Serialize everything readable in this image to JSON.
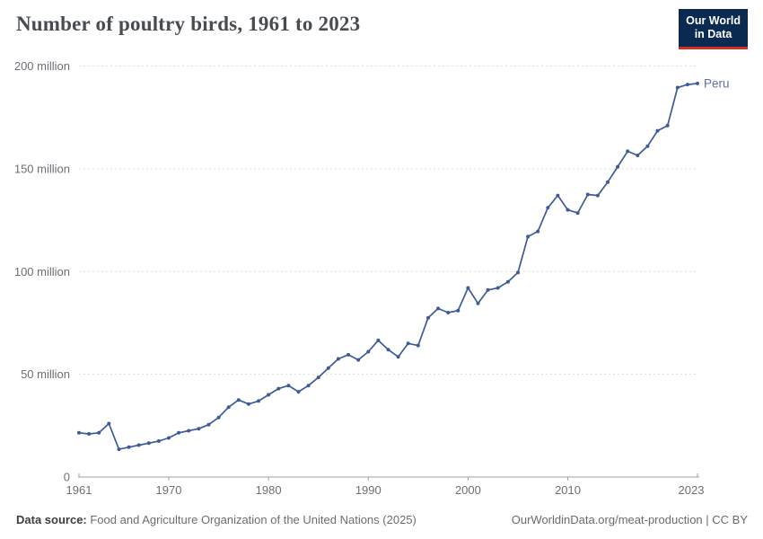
{
  "header": {
    "title": "Number of poultry birds, 1961 to 2023",
    "logo": {
      "line1": "Our World",
      "line2": "in Data"
    }
  },
  "footer": {
    "source_label": "Data source:",
    "source_text": " Food and Agriculture Organization of the United Nations (2025)",
    "link_text": "OurWorldinData.org/meat-production",
    "separator": " | ",
    "license": "CC BY"
  },
  "colors": {
    "line": "#3d5b99",
    "series_label": "#5d70a7",
    "grid": "#dcdcdc",
    "axis": "#a0a0a0",
    "tick_text": "#6d6f77",
    "logo_bg": "#0b2a51",
    "logo_red": "#d02e26"
  },
  "chart_data": {
    "type": "line",
    "title": "Number of poultry birds, 1961 to 2023",
    "unit": "million birds",
    "xlabel": "",
    "ylabel": "",
    "x_range": [
      1961,
      2023
    ],
    "ylim_millions": [
      0,
      200
    ],
    "grid": "dashed-horizontal",
    "legend_position": "end-of-line",
    "x_ticks": [
      1961,
      1970,
      1980,
      1990,
      2000,
      2010,
      2023
    ],
    "y_ticks": [
      {
        "value": 0,
        "label": "0"
      },
      {
        "value": 50,
        "label": "50 million"
      },
      {
        "value": 100,
        "label": "100 million"
      },
      {
        "value": 150,
        "label": "150 million"
      },
      {
        "value": 200,
        "label": "200 million"
      }
    ],
    "series": [
      {
        "name": "Peru",
        "x": [
          1961,
          1962,
          1963,
          1964,
          1965,
          1966,
          1967,
          1968,
          1969,
          1970,
          1971,
          1972,
          1973,
          1974,
          1975,
          1976,
          1977,
          1978,
          1979,
          1980,
          1981,
          1982,
          1983,
          1984,
          1985,
          1986,
          1987,
          1988,
          1989,
          1990,
          1991,
          1992,
          1993,
          1994,
          1995,
          1996,
          1997,
          1998,
          1999,
          2000,
          2001,
          2002,
          2003,
          2004,
          2005,
          2006,
          2007,
          2008,
          2009,
          2010,
          2011,
          2012,
          2013,
          2014,
          2015,
          2016,
          2017,
          2018,
          2019,
          2020,
          2021,
          2022,
          2023
        ],
        "values_millions": [
          21.5,
          21,
          21.5,
          26,
          13.5,
          14.5,
          15.5,
          16.5,
          17.5,
          19,
          21.5,
          22.5,
          23.5,
          25.5,
          29,
          34,
          37.5,
          35.5,
          37,
          40,
          43,
          44.5,
          41.5,
          44.5,
          48.5,
          53,
          57.5,
          59.5,
          57,
          61,
          66.5,
          62,
          58.5,
          65,
          64,
          77.5,
          82,
          80,
          81,
          92,
          84.5,
          91,
          92,
          95,
          99.5,
          117,
          119.5,
          131,
          137,
          130,
          128.5,
          137.5,
          137,
          143.5,
          151,
          158.5,
          156.5,
          161,
          168.5,
          171,
          189.5,
          191,
          191.5
        ]
      }
    ]
  }
}
